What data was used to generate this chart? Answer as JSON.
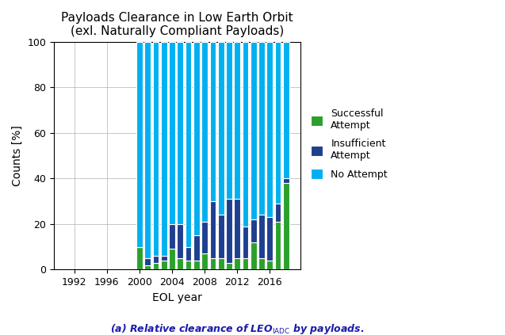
{
  "title_line1": "Payloads Clearance in Low Earth Orbit",
  "title_line2": "(exl. Naturally Compliant Payloads)",
  "xlabel": "EOL year",
  "ylabel": "Counts [%]",
  "ylim": [
    0,
    100
  ],
  "yticks": [
    0,
    20,
    40,
    60,
    80,
    100
  ],
  "xticks": [
    1992,
    1996,
    2000,
    2004,
    2008,
    2012,
    2016
  ],
  "xlim": [
    1989.5,
    2019.8
  ],
  "years": [
    2000,
    2001,
    2002,
    2003,
    2004,
    2005,
    2006,
    2007,
    2008,
    2009,
    2010,
    2011,
    2012,
    2013,
    2014,
    2015,
    2016,
    2017,
    2018
  ],
  "successful": [
    10,
    2,
    3,
    4,
    9,
    5,
    4,
    4,
    7,
    5,
    5,
    3,
    5,
    5,
    12,
    5,
    4,
    21,
    38
  ],
  "insufficient": [
    0,
    3,
    3,
    2,
    11,
    15,
    6,
    11,
    14,
    25,
    19,
    28,
    26,
    14,
    10,
    19,
    19,
    8,
    2
  ],
  "no_attempt": [
    90,
    95,
    94,
    94,
    80,
    80,
    90,
    85,
    79,
    70,
    76,
    69,
    69,
    81,
    78,
    76,
    77,
    71,
    60
  ],
  "color_successful": "#2ca02c",
  "color_insufficient": "#1f3f8f",
  "color_no_attempt": "#00b0f0",
  "bar_width": 0.75,
  "bar_edge_color": "white",
  "bar_edge_width": 0.8,
  "legend_labels": [
    "Successful\nAttempt",
    "Insufficient\nAttempt",
    "No Attempt"
  ],
  "grid_color": "#b0b0b0",
  "grid_linewidth": 0.5,
  "fig_facecolor": "white",
  "title_fontsize": 11,
  "title_fontweight": "normal",
  "label_fontsize": 10,
  "tick_fontsize": 9,
  "legend_fontsize": 9,
  "caption_fontsize": 9,
  "caption_color": "#1a1aaa"
}
